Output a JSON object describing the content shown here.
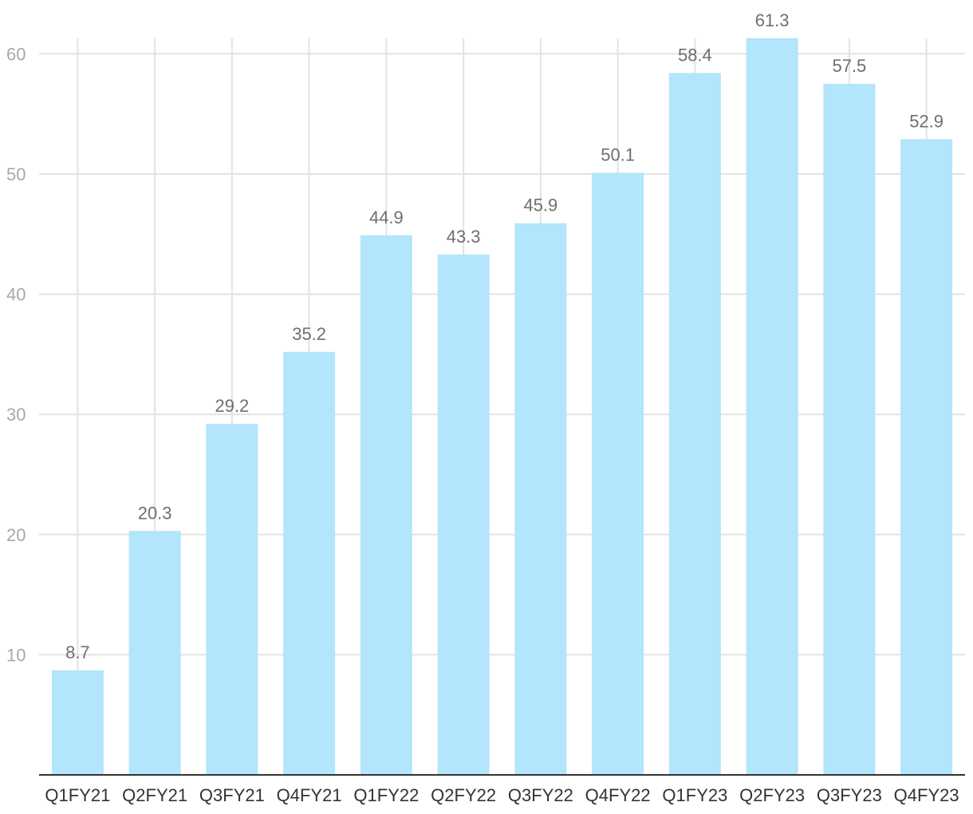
{
  "chart_data": {
    "type": "bar",
    "categories": [
      "Q1FY21",
      "Q2FY21",
      "Q3FY21",
      "Q4FY21",
      "Q1FY22",
      "Q2FY22",
      "Q3FY22",
      "Q4FY22",
      "Q1FY23",
      "Q2FY23",
      "Q3FY23",
      "Q4FY23"
    ],
    "values": [
      8.7,
      20.3,
      29.2,
      35.2,
      44.9,
      43.3,
      45.9,
      50.1,
      58.4,
      61.3,
      57.5,
      52.9
    ],
    "data_labels": [
      "8.7",
      "20.3",
      "29.2",
      "35.2",
      "44.9",
      "43.3",
      "45.9",
      "50.1",
      "58.4",
      "61.3",
      "57.5",
      "52.9"
    ],
    "y_ticks": [
      10,
      20,
      30,
      40,
      50,
      60
    ],
    "ylim": [
      0,
      61.3
    ],
    "title": "",
    "xlabel": "",
    "ylabel": "",
    "grid": true,
    "legend": "none",
    "colors": {
      "bar": "#b3e5fc",
      "grid": "#e3e3e3",
      "axis": "#333333",
      "y_tick_text": "#a8a8a8",
      "x_tick_text": "#333333",
      "data_label_text": "#6f6f6f"
    }
  }
}
